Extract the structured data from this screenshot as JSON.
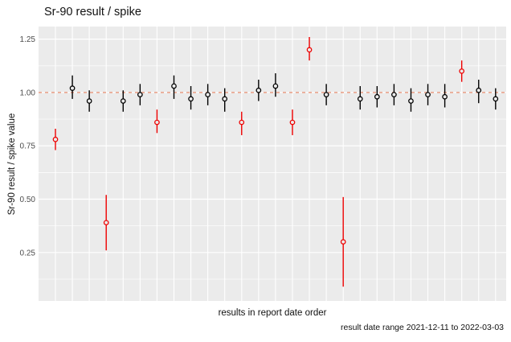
{
  "chart_data": {
    "type": "scatter",
    "title": "Sr-90 result / spike",
    "xlabel": "results in report date order",
    "ylabel": "Sr-90 result / spike value",
    "caption": "result date range 2021-12-11 to 2022-03-03",
    "legend": "none",
    "grid": "white major and minor gridlines on grey panel, one vertical gridline per result",
    "ylim": [
      0.023,
      1.309
    ],
    "y_ticks": [
      {
        "value": 1.25,
        "label": "1.25"
      },
      {
        "value": 1.0,
        "label": "1.00"
      },
      {
        "value": 0.75,
        "label": "0.75"
      },
      {
        "value": 0.5,
        "label": "0.50"
      },
      {
        "value": 0.25,
        "label": "0.25"
      }
    ],
    "y_minor_ticks": [
      0.125,
      0.375,
      0.625,
      0.875,
      1.125
    ],
    "reference_line": {
      "y": 1.0,
      "style": "dashed",
      "color": "#E9967A"
    },
    "point_colors": {
      "normal": "#000000",
      "flagged": "#EE0000"
    },
    "x": "result index 1..27 in report date order",
    "points": [
      {
        "i": 1,
        "value": 0.78,
        "lo": 0.73,
        "hi": 0.83,
        "flagged": true
      },
      {
        "i": 2,
        "value": 1.02,
        "lo": 0.97,
        "hi": 1.08,
        "flagged": false
      },
      {
        "i": 3,
        "value": 0.96,
        "lo": 0.91,
        "hi": 1.01,
        "flagged": false
      },
      {
        "i": 4,
        "value": 0.39,
        "lo": 0.26,
        "hi": 0.52,
        "flagged": true
      },
      {
        "i": 5,
        "value": 0.96,
        "lo": 0.91,
        "hi": 1.01,
        "flagged": false
      },
      {
        "i": 6,
        "value": 0.99,
        "lo": 0.94,
        "hi": 1.04,
        "flagged": false
      },
      {
        "i": 7,
        "value": 0.86,
        "lo": 0.81,
        "hi": 0.92,
        "flagged": true
      },
      {
        "i": 8,
        "value": 1.03,
        "lo": 0.97,
        "hi": 1.08,
        "flagged": false
      },
      {
        "i": 9,
        "value": 0.97,
        "lo": 0.92,
        "hi": 1.03,
        "flagged": false
      },
      {
        "i": 10,
        "value": 0.99,
        "lo": 0.94,
        "hi": 1.04,
        "flagged": false
      },
      {
        "i": 11,
        "value": 0.97,
        "lo": 0.91,
        "hi": 1.02,
        "flagged": false
      },
      {
        "i": 12,
        "value": 0.86,
        "lo": 0.8,
        "hi": 0.91,
        "flagged": true
      },
      {
        "i": 13,
        "value": 1.01,
        "lo": 0.96,
        "hi": 1.06,
        "flagged": false
      },
      {
        "i": 14,
        "value": 1.03,
        "lo": 0.98,
        "hi": 1.09,
        "flagged": false
      },
      {
        "i": 15,
        "value": 0.86,
        "lo": 0.8,
        "hi": 0.92,
        "flagged": true
      },
      {
        "i": 16,
        "value": 1.2,
        "lo": 1.15,
        "hi": 1.26,
        "flagged": true
      },
      {
        "i": 17,
        "value": 0.99,
        "lo": 0.94,
        "hi": 1.04,
        "flagged": false
      },
      {
        "i": 18,
        "value": 0.3,
        "lo": 0.09,
        "hi": 0.51,
        "flagged": true
      },
      {
        "i": 19,
        "value": 0.97,
        "lo": 0.92,
        "hi": 1.03,
        "flagged": false
      },
      {
        "i": 20,
        "value": 0.98,
        "lo": 0.93,
        "hi": 1.03,
        "flagged": false
      },
      {
        "i": 21,
        "value": 0.99,
        "lo": 0.94,
        "hi": 1.04,
        "flagged": false
      },
      {
        "i": 22,
        "value": 0.96,
        "lo": 0.91,
        "hi": 1.02,
        "flagged": false
      },
      {
        "i": 23,
        "value": 0.99,
        "lo": 0.94,
        "hi": 1.04,
        "flagged": false
      },
      {
        "i": 24,
        "value": 0.98,
        "lo": 0.93,
        "hi": 1.04,
        "flagged": false
      },
      {
        "i": 25,
        "value": 1.1,
        "lo": 1.05,
        "hi": 1.15,
        "flagged": true
      },
      {
        "i": 26,
        "value": 1.01,
        "lo": 0.95,
        "hi": 1.06,
        "flagged": false
      },
      {
        "i": 27,
        "value": 0.97,
        "lo": 0.92,
        "hi": 1.02,
        "flagged": false
      }
    ]
  }
}
